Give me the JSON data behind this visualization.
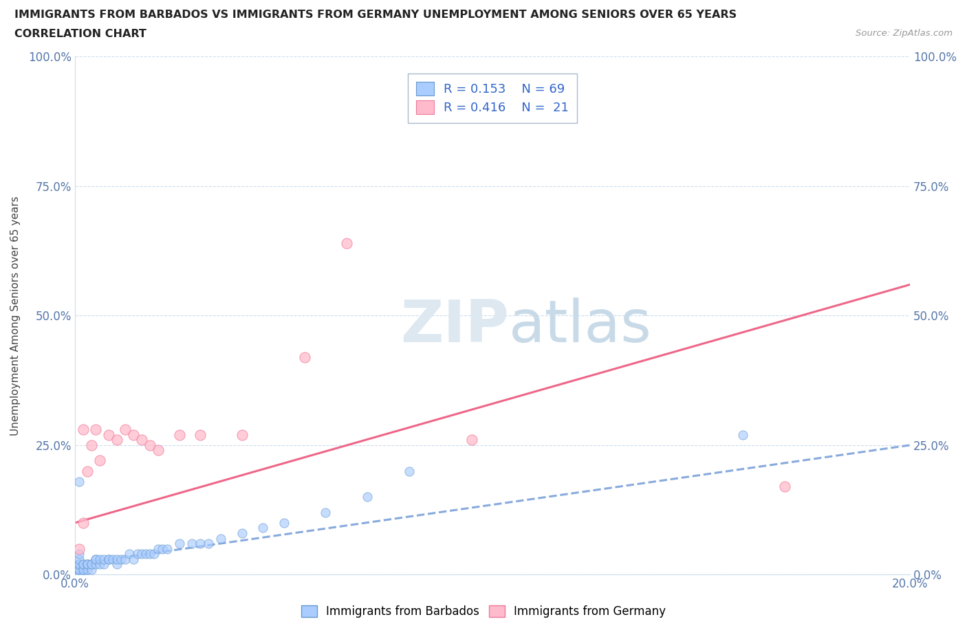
{
  "title_line1": "IMMIGRANTS FROM BARBADOS VS IMMIGRANTS FROM GERMANY UNEMPLOYMENT AMONG SENIORS OVER 65 YEARS",
  "title_line2": "CORRELATION CHART",
  "source_text": "Source: ZipAtlas.com",
  "ylabel": "Unemployment Among Seniors over 65 years",
  "xlim": [
    0.0,
    0.2
  ],
  "ylim": [
    0.0,
    1.0
  ],
  "xticks": [
    0.0,
    0.04,
    0.08,
    0.12,
    0.16,
    0.2
  ],
  "yticks": [
    0.0,
    0.25,
    0.5,
    0.75,
    1.0
  ],
  "yticklabels": [
    "0.0%",
    "25.0%",
    "50.0%",
    "75.0%",
    "100.0%"
  ],
  "right_yticklabels": [
    "0.0%",
    "25.0%",
    "50.0%",
    "75.0%",
    "100.0%"
  ],
  "barbados_color": "#aaccff",
  "germany_color": "#ffbbcc",
  "barbados_edge": "#6699cc",
  "germany_edge": "#ee7799",
  "trendline_barbados_color": "#88aadd",
  "trendline_germany_color": "#ee6688",
  "legend_R_barbados": "0.153",
  "legend_N_barbados": "69",
  "legend_R_germany": "0.416",
  "legend_N_germany": "21",
  "watermark_color": "#ccddeeff",
  "barbados_x": [
    0.0,
    0.0,
    0.0,
    0.0,
    0.0,
    0.0,
    0.0,
    0.0,
    0.0,
    0.0,
    0.001,
    0.001,
    0.001,
    0.001,
    0.001,
    0.001,
    0.001,
    0.001,
    0.001,
    0.001,
    0.001,
    0.002,
    0.002,
    0.002,
    0.002,
    0.002,
    0.003,
    0.003,
    0.003,
    0.003,
    0.004,
    0.004,
    0.004,
    0.005,
    0.005,
    0.005,
    0.006,
    0.006,
    0.007,
    0.007,
    0.008,
    0.008,
    0.009,
    0.01,
    0.01,
    0.011,
    0.012,
    0.013,
    0.014,
    0.015,
    0.016,
    0.017,
    0.018,
    0.019,
    0.02,
    0.021,
    0.022,
    0.025,
    0.028,
    0.03,
    0.032,
    0.035,
    0.04,
    0.045,
    0.05,
    0.06,
    0.07,
    0.08,
    0.16
  ],
  "barbados_y": [
    0.0,
    0.0,
    0.0,
    0.0,
    0.0,
    0.0,
    0.01,
    0.01,
    0.01,
    0.02,
    0.0,
    0.0,
    0.0,
    0.0,
    0.01,
    0.01,
    0.02,
    0.02,
    0.03,
    0.04,
    0.18,
    0.0,
    0.01,
    0.01,
    0.02,
    0.02,
    0.01,
    0.02,
    0.02,
    0.02,
    0.01,
    0.02,
    0.02,
    0.02,
    0.03,
    0.03,
    0.02,
    0.03,
    0.02,
    0.03,
    0.03,
    0.03,
    0.03,
    0.02,
    0.03,
    0.03,
    0.03,
    0.04,
    0.03,
    0.04,
    0.04,
    0.04,
    0.04,
    0.04,
    0.05,
    0.05,
    0.05,
    0.06,
    0.06,
    0.06,
    0.06,
    0.07,
    0.08,
    0.09,
    0.1,
    0.12,
    0.15,
    0.2,
    0.27
  ],
  "germany_x": [
    0.001,
    0.002,
    0.002,
    0.003,
    0.004,
    0.005,
    0.006,
    0.008,
    0.01,
    0.012,
    0.014,
    0.016,
    0.018,
    0.02,
    0.025,
    0.03,
    0.04,
    0.055,
    0.065,
    0.095,
    0.17
  ],
  "germany_y": [
    0.05,
    0.1,
    0.28,
    0.2,
    0.25,
    0.28,
    0.22,
    0.27,
    0.26,
    0.28,
    0.27,
    0.26,
    0.25,
    0.24,
    0.27,
    0.27,
    0.27,
    0.42,
    0.64,
    0.26,
    0.17
  ],
  "germany_trendline_x0": 0.0,
  "germany_trendline_y0": 0.1,
  "germany_trendline_x1": 0.2,
  "germany_trendline_y1": 0.56,
  "barbados_trendline_x0": 0.0,
  "barbados_trendline_y0": 0.02,
  "barbados_trendline_x1": 0.2,
  "barbados_trendline_y1": 0.25
}
